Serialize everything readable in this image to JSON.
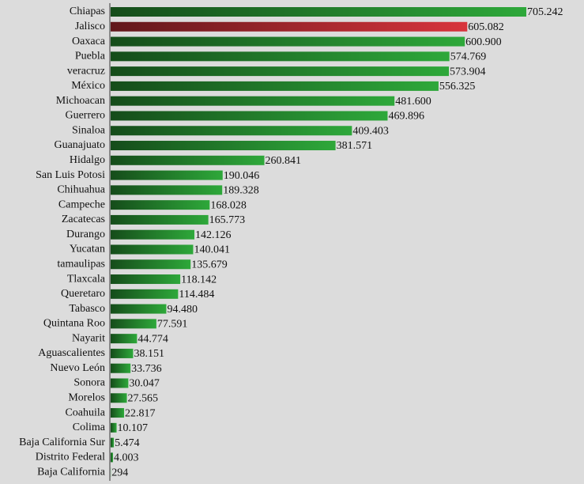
{
  "chart_data": {
    "type": "bar",
    "categories": [
      "Chiapas",
      "Jalisco",
      "Oaxaca",
      "Puebla",
      "veracruz",
      "México",
      "Michoacan",
      "Guerrero",
      "Sinaloa",
      "Guanajuato",
      "Hidalgo",
      "San Luis Potosi",
      "Chihuahua",
      "Campeche",
      "Zacatecas",
      "Durango",
      "Yucatan",
      "tamaulipas",
      "Tlaxcala",
      "Queretaro",
      "Tabasco",
      "Quintana Roo",
      "Nayarit",
      "Aguascalientes",
      "Nuevo León",
      "Sonora",
      "Morelos",
      "Coahuila",
      "Colima",
      "Baja California Sur",
      "Distrito Federal",
      "Baja California"
    ],
    "values": [
      705242,
      605082,
      600900,
      574769,
      573904,
      556325,
      481600,
      469896,
      409403,
      381571,
      260841,
      190046,
      189328,
      168028,
      165773,
      142126,
      140041,
      135679,
      118142,
      114484,
      94480,
      77591,
      44774,
      38151,
      33736,
      30047,
      27565,
      22817,
      10107,
      5474,
      4003,
      294
    ],
    "value_labels": [
      "705.242",
      "605.082",
      "600.900",
      "574.769",
      "573.904",
      "556.325",
      "481.600",
      "469.896",
      "409.403",
      "381.571",
      "260.841",
      "190.046",
      "189.328",
      "168.028",
      "165.773",
      "142.126",
      "140.041",
      "135.679",
      "118.142",
      "114.484",
      "94.480",
      "77.591",
      "44.774",
      "38.151",
      "33.736",
      "30.047",
      "27.565",
      "22.817",
      "10.107",
      "5.474",
      "4.003",
      "294"
    ],
    "colors": [
      "#2ea83a",
      "#d8343c",
      "#2ea83a",
      "#2ea83a",
      "#2ea83a",
      "#2ea83a",
      "#2ea83a",
      "#2ea83a",
      "#2ea83a",
      "#2ea83a",
      "#2ea83a",
      "#2ea83a",
      "#2ea83a",
      "#2ea83a",
      "#2ea83a",
      "#2ea83a",
      "#2ea83a",
      "#2ea83a",
      "#2ea83a",
      "#2ea83a",
      "#2ea83a",
      "#2ea83a",
      "#2ea83a",
      "#2ea83a",
      "#2ea83a",
      "#2ea83a",
      "#2ea83a",
      "#2ea83a",
      "#2ea83a",
      "#2ea83a",
      "#2ea83a",
      "#2ea83a"
    ]
  }
}
